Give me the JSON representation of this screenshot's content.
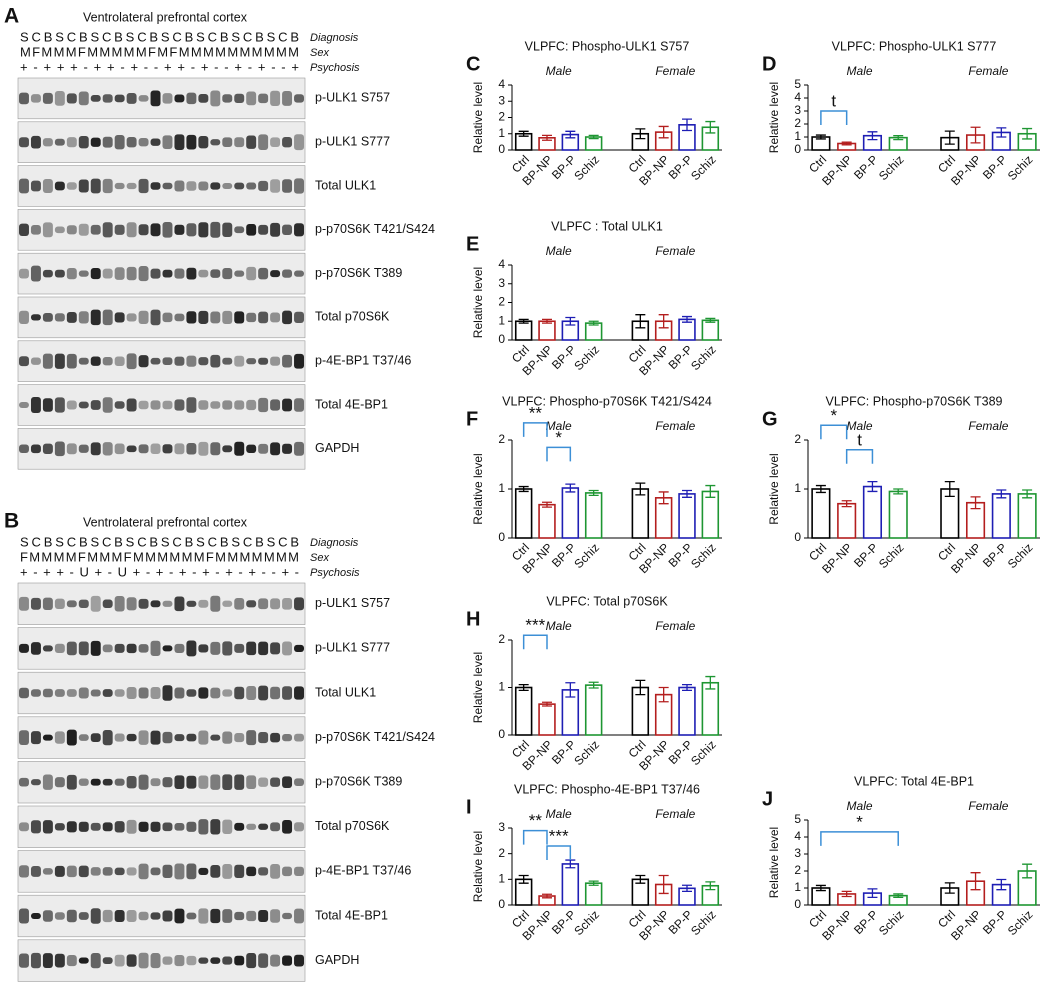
{
  "blots": [
    {
      "label": "A",
      "title": "Ventrolateral prefrontal cortex",
      "row_names": [
        "Diagnosis",
        "Sex",
        "Psychosis"
      ],
      "lanes": [
        "SCBSCBSCBSCBSCBSCBSCBSCB",
        "MFMMMFMMMMMFMFMMMMMMMMMM",
        "+-+++-++-+--++-+--+-+--+"
      ],
      "bands": [
        "p-ULK1 S757",
        "p-ULK1 S777",
        "Total ULK1",
        "p-p70S6K T421/S424",
        "p-p70S6K T389",
        "Total p70S6K",
        "p-4E-BP1 T37/46",
        "Total 4E-BP1",
        "GAPDH"
      ]
    },
    {
      "label": "B",
      "title": "Ventrolateral prefrontal cortex",
      "row_names": [
        "Diagnosis",
        "Sex",
        "Psychosis"
      ],
      "lanes": [
        "SCBSCBSCBSCBSCBSCBSCBSCB",
        "FMMMMFMMMFMMMMMMFMMMMMMM",
        "+-++-U+-U+-+-+-+-+-+--+-"
      ],
      "bands": [
        "p-ULK1 S757",
        "p-ULK1 S777",
        "Total ULK1",
        "p-p70S6K T421/S424",
        "p-p70S6K T389",
        "Total p70S6K",
        "p-4E-BP1 T37/46",
        "Total 4E-BP1",
        "GAPDH"
      ]
    }
  ],
  "chart_data": [
    {
      "type": "bar",
      "label": "C",
      "title": "VLPFC: Phospho-ULK1 S757",
      "ylabel": "Relative level",
      "groups": [
        "Male",
        "Female"
      ],
      "categories": [
        "Ctrl",
        "BP-NP",
        "BP-P",
        "Schiz",
        "Ctrl",
        "BP-NP",
        "BP-P",
        "Schiz"
      ],
      "values": [
        1.0,
        0.75,
        0.95,
        0.8,
        1.0,
        1.1,
        1.55,
        1.4
      ],
      "errors": [
        0.15,
        0.15,
        0.2,
        0.1,
        0.3,
        0.35,
        0.35,
        0.35
      ],
      "colors": [
        "#000000",
        "#b41e1e",
        "#1e1eb4",
        "#1e9632",
        "#000000",
        "#b41e1e",
        "#1e1eb4",
        "#1e9632"
      ],
      "ylim": [
        0,
        4
      ],
      "yticks": [
        0,
        1,
        2,
        3,
        4
      ],
      "annotations": []
    },
    {
      "type": "bar",
      "label": "D",
      "title": "VLPFC: Phospho-ULK1 S777",
      "ylabel": "Relative level",
      "groups": [
        "Male",
        "Female"
      ],
      "categories": [
        "Ctrl",
        "BP-NP",
        "BP-P",
        "Schiz",
        "Ctrl",
        "BP-NP",
        "BP-P",
        "Schiz"
      ],
      "values": [
        1.0,
        0.5,
        1.1,
        0.95,
        0.95,
        1.15,
        1.35,
        1.25
      ],
      "errors": [
        0.15,
        0.1,
        0.3,
        0.15,
        0.5,
        0.6,
        0.35,
        0.4
      ],
      "colors": [
        "#000000",
        "#b41e1e",
        "#1e1eb4",
        "#1e9632",
        "#000000",
        "#b41e1e",
        "#1e1eb4",
        "#1e9632"
      ],
      "ylim": [
        0,
        5
      ],
      "yticks": [
        0,
        1,
        2,
        3,
        4,
        5
      ],
      "annotations": [
        "t"
      ]
    },
    {
      "type": "bar",
      "label": "E",
      "title": "VLPFC : Total ULK1",
      "ylabel": "Relative level",
      "groups": [
        "Male",
        "Female"
      ],
      "categories": [
        "Ctrl",
        "BP-NP",
        "BP-P",
        "Schiz",
        "Ctrl",
        "BP-NP",
        "BP-P",
        "Schiz"
      ],
      "values": [
        1.0,
        1.0,
        1.0,
        0.9,
        1.0,
        1.0,
        1.1,
        1.05
      ],
      "errors": [
        0.1,
        0.1,
        0.2,
        0.1,
        0.35,
        0.35,
        0.15,
        0.1
      ],
      "colors": [
        "#000000",
        "#b41e1e",
        "#1e1eb4",
        "#1e9632",
        "#000000",
        "#b41e1e",
        "#1e1eb4",
        "#1e9632"
      ],
      "ylim": [
        0,
        4
      ],
      "yticks": [
        0,
        1,
        2,
        3,
        4
      ],
      "annotations": []
    },
    {
      "type": "bar",
      "label": "F",
      "title": "VLPFC: Phospho-p70S6K T421/S424",
      "ylabel": "Relative level",
      "groups": [
        "Male",
        "Female"
      ],
      "categories": [
        "Ctrl",
        "BP-NP",
        "BP-P",
        "Schiz",
        "Ctrl",
        "BP-NP",
        "BP-P",
        "Schiz"
      ],
      "values": [
        1.0,
        0.68,
        1.02,
        0.92,
        1.0,
        0.82,
        0.9,
        0.95
      ],
      "errors": [
        0.05,
        0.05,
        0.08,
        0.05,
        0.12,
        0.12,
        0.07,
        0.12
      ],
      "colors": [
        "#000000",
        "#b41e1e",
        "#1e1eb4",
        "#1e9632",
        "#000000",
        "#b41e1e",
        "#1e1eb4",
        "#1e9632"
      ],
      "ylim": [
        0,
        2
      ],
      "yticks": [
        0,
        1,
        2
      ],
      "annotations": [
        "**",
        "*"
      ]
    },
    {
      "type": "bar",
      "label": "G",
      "title": "VLPFC: Phospho-p70S6K T389",
      "ylabel": "Relative level",
      "groups": [
        "Male",
        "Female"
      ],
      "categories": [
        "Ctrl",
        "BP-NP",
        "BP-P",
        "Schiz",
        "Ctrl",
        "BP-NP",
        "BP-P",
        "Schiz"
      ],
      "values": [
        1.0,
        0.7,
        1.05,
        0.95,
        1.0,
        0.72,
        0.9,
        0.9
      ],
      "errors": [
        0.07,
        0.06,
        0.1,
        0.05,
        0.15,
        0.12,
        0.08,
        0.08
      ],
      "colors": [
        "#000000",
        "#b41e1e",
        "#1e1eb4",
        "#1e9632",
        "#000000",
        "#b41e1e",
        "#1e1eb4",
        "#1e9632"
      ],
      "ylim": [
        0,
        2
      ],
      "yticks": [
        0,
        1,
        2
      ],
      "annotations": [
        "*",
        "t"
      ]
    },
    {
      "type": "bar",
      "label": "H",
      "title": "VLPFC: Total p70S6K",
      "ylabel": "Relative level",
      "groups": [
        "Male",
        "Female"
      ],
      "categories": [
        "Ctrl",
        "BP-NP",
        "BP-P",
        "Schiz",
        "Ctrl",
        "BP-NP",
        "BP-P",
        "Schiz"
      ],
      "values": [
        1.0,
        0.65,
        0.95,
        1.05,
        1.0,
        0.85,
        1.0,
        1.1
      ],
      "errors": [
        0.06,
        0.04,
        0.15,
        0.06,
        0.15,
        0.15,
        0.06,
        0.13
      ],
      "colors": [
        "#000000",
        "#b41e1e",
        "#1e1eb4",
        "#1e9632",
        "#000000",
        "#b41e1e",
        "#1e1eb4",
        "#1e9632"
      ],
      "ylim": [
        0,
        2
      ],
      "yticks": [
        0,
        1,
        2
      ],
      "annotations": [
        "***"
      ]
    },
    {
      "type": "bar",
      "label": "I",
      "title": "VLPFC: Phospho-4E-BP1 T37/46",
      "ylabel": "Relative level",
      "groups": [
        "Male",
        "Female"
      ],
      "categories": [
        "Ctrl",
        "BP-NP",
        "BP-P",
        "Schiz",
        "Ctrl",
        "BP-NP",
        "BP-P",
        "Schiz"
      ],
      "values": [
        1.0,
        0.35,
        1.6,
        0.85,
        1.0,
        0.8,
        0.65,
        0.75
      ],
      "errors": [
        0.15,
        0.07,
        0.15,
        0.08,
        0.15,
        0.35,
        0.12,
        0.15
      ],
      "colors": [
        "#000000",
        "#b41e1e",
        "#1e1eb4",
        "#1e9632",
        "#000000",
        "#b41e1e",
        "#1e1eb4",
        "#1e9632"
      ],
      "ylim": [
        0,
        3
      ],
      "yticks": [
        0,
        1,
        2,
        3
      ],
      "annotations": [
        "**",
        "***"
      ]
    },
    {
      "type": "bar",
      "label": "J",
      "title": "VLPFC: Total 4E-BP1",
      "ylabel": "Relative level",
      "groups": [
        "Male",
        "Female"
      ],
      "categories": [
        "Ctrl",
        "BP-NP",
        "BP-P",
        "Schiz",
        "Ctrl",
        "BP-NP",
        "BP-P",
        "Schiz"
      ],
      "values": [
        1.0,
        0.65,
        0.7,
        0.55,
        1.0,
        1.4,
        1.2,
        2.0
      ],
      "errors": [
        0.15,
        0.15,
        0.25,
        0.1,
        0.3,
        0.5,
        0.3,
        0.4
      ],
      "colors": [
        "#000000",
        "#b41e1e",
        "#1e1eb4",
        "#1e9632",
        "#000000",
        "#b41e1e",
        "#1e1eb4",
        "#1e9632"
      ],
      "ylim": [
        0,
        5
      ],
      "yticks": [
        0,
        1,
        2,
        3,
        4,
        5
      ],
      "annotations": [
        "*"
      ]
    }
  ]
}
